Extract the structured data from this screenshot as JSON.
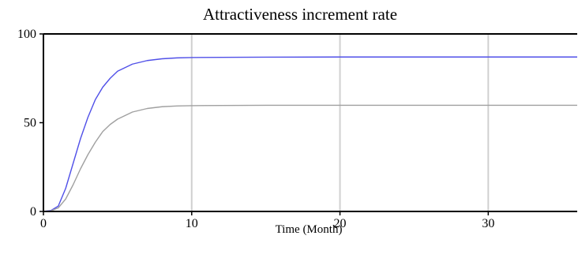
{
  "chart_data": {
    "type": "line",
    "title": "Attractiveness increment rate",
    "xlabel": "Time (Month)",
    "ylabel": "",
    "xlim": [
      0,
      36
    ],
    "ylim": [
      0,
      100
    ],
    "xticks": [
      0,
      10,
      20,
      30
    ],
    "yticks": [
      0,
      50,
      100
    ],
    "grid": "vertical",
    "legend": "none",
    "series": [
      {
        "color": "#5050e8",
        "x": [
          0,
          0.5,
          1,
          1.5,
          2,
          2.5,
          3,
          3.5,
          4,
          4.5,
          5,
          6,
          7,
          8,
          9,
          10,
          12,
          15,
          20,
          25,
          30,
          36
        ],
        "y": [
          0,
          0.5,
          3,
          13,
          27,
          41,
          53,
          63,
          70,
          75,
          79,
          83,
          85,
          86,
          86.5,
          86.7,
          86.8,
          86.9,
          87,
          87,
          87,
          87
        ]
      },
      {
        "color": "#a0a0a0",
        "x": [
          0,
          0.5,
          1,
          1.5,
          2,
          2.5,
          3,
          3.5,
          4,
          4.5,
          5,
          6,
          7,
          8,
          9,
          10,
          12,
          15,
          20,
          25,
          30,
          36
        ],
        "y": [
          0,
          0.3,
          2,
          7,
          15,
          24,
          32,
          39,
          45,
          49,
          52,
          56,
          58,
          59,
          59.4,
          59.6,
          59.7,
          59.8,
          59.8,
          59.8,
          59.8,
          59.8
        ]
      }
    ]
  }
}
